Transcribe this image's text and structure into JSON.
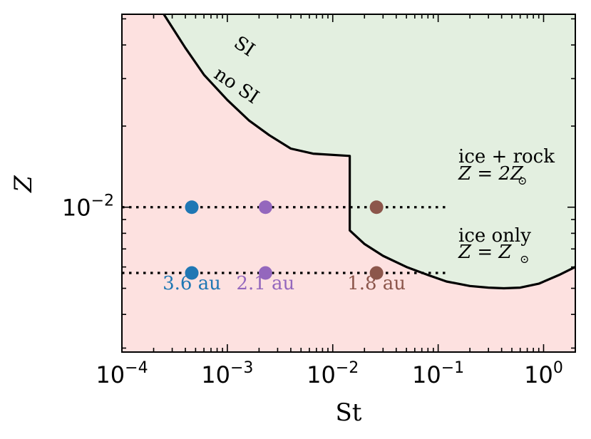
{
  "chart_data": {
    "type": "scatter",
    "xlabel": "St",
    "ylabel": "Z",
    "xscale": "log",
    "yscale": "log",
    "xlim": [
      0.0001,
      2.0
    ],
    "ylim": [
      0.0029,
      0.052
    ],
    "grid": false,
    "x_ticks": [
      {
        "value": 0.0001,
        "base": "10",
        "exp": "−4"
      },
      {
        "value": 0.001,
        "base": "10",
        "exp": "−3"
      },
      {
        "value": 0.01,
        "base": "10",
        "exp": "−2"
      },
      {
        "value": 0.1,
        "base": "10",
        "exp": "−1"
      },
      {
        "value": 1,
        "base": "10",
        "exp": "0"
      }
    ],
    "y_ticks": [
      {
        "value": 0.01,
        "base": "10",
        "exp": "−2"
      }
    ],
    "regions": {
      "above": {
        "label": "SI",
        "color": "#e3efe0"
      },
      "below": {
        "label": "no SI",
        "color": "#fde1e0"
      }
    },
    "boundary": {
      "color": "#000000",
      "x": [
        0.00025,
        0.0004,
        0.0006,
        0.001,
        0.0016,
        0.0025,
        0.004,
        0.0065,
        0.0145,
        0.0145,
        0.02,
        0.03,
        0.05,
        0.08,
        0.12,
        0.2,
        0.3,
        0.42,
        0.6,
        0.9,
        1.4,
        2.0
      ],
      "y": [
        0.052,
        0.039,
        0.031,
        0.025,
        0.021,
        0.0185,
        0.0165,
        0.0158,
        0.0155,
        0.0082,
        0.0073,
        0.0066,
        0.006,
        0.0056,
        0.0053,
        0.0051,
        0.00503,
        0.005,
        0.00503,
        0.0052,
        0.0056,
        0.006
      ]
    },
    "series": [
      {
        "label": "ice + rock",
        "label_z": "Z = 2Z",
        "y": 0.01,
        "line_x": [
          0.0001,
          0.12
        ],
        "points": [
          {
            "x": 0.00046,
            "color": "#1f77b4"
          },
          {
            "x": 0.0023,
            "color": "#9467bd"
          },
          {
            "x": 0.026,
            "color": "#8c564b"
          }
        ]
      },
      {
        "label": "ice only",
        "label_z": "Z = Z",
        "y": 0.0057,
        "line_x": [
          0.0001,
          0.12
        ],
        "points": [
          {
            "x": 0.00046,
            "color": "#1f77b4"
          },
          {
            "x": 0.0023,
            "color": "#9467bd"
          },
          {
            "x": 0.026,
            "color": "#8c564b"
          }
        ]
      }
    ],
    "annotations": [
      {
        "text": "3.6 au",
        "x": 0.00046,
        "color": "#1f77b4"
      },
      {
        "text": "2.1 au",
        "x": 0.0023,
        "color": "#9467bd"
      },
      {
        "text": "1.8 au",
        "x": 0.026,
        "color": "#8c564b"
      }
    ]
  }
}
